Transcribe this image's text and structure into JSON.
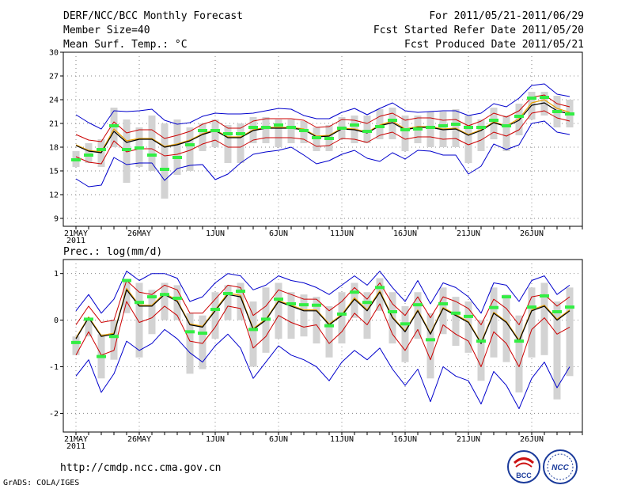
{
  "header": {
    "title": "DERF/NCC/BCC Monthly Forecast",
    "member_size": "Member Size=40",
    "variable_top": "Mean Surf. Temp.: °C",
    "forecast_range": "For 2011/05/21-2011/06/29",
    "start_date": "Fcst Started Refer Date 2011/05/20",
    "produced_date": "Fcst Produced Date 2011/05/21"
  },
  "footer": {
    "url": "http://cmdp.ncc.cma.gov.cn",
    "credit": "GrADS: COLA/IGES",
    "logo_bcc_text": "BCC",
    "logo_ncc_text": "NCC"
  },
  "colors": {
    "ensemble_mean": "#000000",
    "spread_inner": "#cc0000",
    "spread_outer": "#0000cc",
    "median": "#e8a000",
    "boxes": "#d3d3d3",
    "observed_marker": "#33ee44",
    "grid": "#888888"
  },
  "chart_data": [
    {
      "type": "line",
      "title": "Mean Surf. Temp.: °C",
      "x_start": "21MAY",
      "x_labels": [
        "21MAY",
        "26MAY",
        "1JUN",
        "6JUN",
        "11JUN",
        "16JUN",
        "21JUN",
        "26JUN"
      ],
      "x_label_day_index": [
        0,
        5,
        11,
        16,
        21,
        26,
        31,
        36
      ],
      "x_sublabel": "2011",
      "ylim": [
        8,
        30
      ],
      "yticks": [
        9,
        12,
        15,
        18,
        21,
        24,
        27,
        30
      ],
      "series": [
        {
          "name": "ensemble_mean",
          "values": [
            18.2,
            17.5,
            17.3,
            20.0,
            18.6,
            19.0,
            19.0,
            18.0,
            18.3,
            18.8,
            19.6,
            20.1,
            19.2,
            19.2,
            20.1,
            20.4,
            20.4,
            20.4,
            20.2,
            19.3,
            19.4,
            20.3,
            20.2,
            19.8,
            20.7,
            21.1,
            20.2,
            20.5,
            20.5,
            20.2,
            20.3,
            19.5,
            20.1,
            21.1,
            20.6,
            21.4,
            23.3,
            23.6,
            22.6,
            22.2
          ]
        },
        {
          "name": "median",
          "values": [
            18.3,
            17.6,
            17.4,
            20.3,
            18.8,
            19.1,
            19.1,
            18.1,
            18.4,
            18.9,
            19.7,
            20.2,
            19.3,
            19.3,
            20.2,
            20.5,
            20.5,
            20.5,
            20.3,
            19.4,
            19.5,
            20.4,
            20.3,
            19.9,
            20.8,
            21.3,
            20.3,
            20.6,
            20.6,
            20.3,
            20.4,
            19.6,
            20.2,
            21.2,
            20.7,
            21.6,
            23.6,
            24.0,
            22.9,
            22.4
          ]
        },
        {
          "name": "upper_1sd",
          "values": [
            19.6,
            18.9,
            18.7,
            21.2,
            19.8,
            20.2,
            20.2,
            19.1,
            19.5,
            20.0,
            20.9,
            21.4,
            20.4,
            20.4,
            21.3,
            21.6,
            21.6,
            21.6,
            21.4,
            20.5,
            20.6,
            21.5,
            21.4,
            21.0,
            21.9,
            22.3,
            21.4,
            21.7,
            21.7,
            21.4,
            21.5,
            20.7,
            21.3,
            22.3,
            21.8,
            22.6,
            24.3,
            24.6,
            23.5,
            23.1
          ]
        },
        {
          "name": "lower_1sd",
          "values": [
            16.8,
            16.1,
            15.9,
            18.8,
            17.4,
            17.8,
            17.8,
            16.9,
            17.1,
            17.6,
            18.4,
            18.9,
            18.0,
            18.0,
            18.9,
            19.2,
            19.2,
            19.2,
            19.0,
            18.1,
            18.2,
            19.1,
            19.0,
            18.6,
            19.5,
            19.9,
            19.0,
            19.3,
            19.3,
            19.0,
            19.1,
            18.3,
            18.9,
            19.9,
            19.4,
            20.2,
            22.3,
            22.6,
            21.7,
            21.3
          ]
        },
        {
          "name": "upper_extreme",
          "values": [
            22.1,
            21.1,
            20.3,
            22.6,
            22.5,
            22.6,
            22.8,
            21.4,
            20.9,
            21.1,
            21.9,
            22.3,
            22.2,
            22.2,
            22.3,
            22.6,
            22.9,
            22.8,
            22.0,
            21.6,
            21.6,
            22.4,
            22.9,
            22.1,
            22.9,
            23.6,
            22.6,
            22.4,
            22.5,
            22.6,
            22.6,
            22.0,
            22.3,
            23.5,
            23.1,
            24.2,
            25.8,
            26.0,
            24.7,
            24.4
          ]
        },
        {
          "name": "lower_extreme",
          "values": [
            14.0,
            13.0,
            13.2,
            16.7,
            15.8,
            16.0,
            16.0,
            13.8,
            15.3,
            15.7,
            15.8,
            13.9,
            14.6,
            16.0,
            17.1,
            17.4,
            17.6,
            18.0,
            17.0,
            15.9,
            16.3,
            17.1,
            17.6,
            16.6,
            16.2,
            17.3,
            16.5,
            17.6,
            17.5,
            17.0,
            17.0,
            14.6,
            15.6,
            18.4,
            17.7,
            18.3,
            21.0,
            21.3,
            19.9,
            19.6
          ]
        },
        {
          "name": "box_high",
          "values": [
            17.5,
            18.5,
            19.0,
            23.0,
            21.5,
            20.5,
            22.0,
            21.0,
            21.5,
            20.5,
            21.0,
            21.5,
            20.8,
            21.0,
            21.8,
            21.8,
            21.5,
            21.5,
            21.3,
            20.5,
            20.8,
            21.8,
            22.0,
            22.0,
            22.8,
            23.0,
            22.0,
            22.0,
            22.5,
            22.5,
            22.8,
            22.0,
            21.5,
            23.0,
            22.0,
            23.5,
            25.0,
            25.0,
            24.5,
            24.0
          ]
        },
        {
          "name": "box_low",
          "values": [
            15.5,
            16.0,
            15.5,
            18.0,
            13.5,
            15.5,
            15.0,
            11.5,
            14.5,
            15.0,
            17.5,
            18.0,
            16.0,
            16.0,
            18.5,
            18.5,
            18.0,
            18.5,
            18.5,
            17.5,
            17.5,
            19.0,
            18.5,
            18.5,
            19.0,
            19.0,
            17.5,
            18.5,
            18.0,
            18.0,
            18.0,
            16.0,
            17.5,
            19.0,
            17.5,
            19.5,
            21.5,
            22.0,
            20.5,
            20.5
          ]
        },
        {
          "name": "observed",
          "values": [
            16.4,
            17.0,
            17.7,
            20.7,
            17.7,
            17.9,
            17.0,
            15.2,
            16.7,
            18.3,
            20.1,
            20.1,
            19.7,
            19.7,
            20.5,
            20.5,
            20.8,
            20.5,
            20.1,
            19.2,
            19.1,
            20.4,
            20.8,
            20.0,
            20.6,
            21.4,
            20.2,
            20.3,
            20.5,
            20.7,
            20.9,
            20.5,
            20.5,
            21.4,
            20.7,
            21.9,
            24.2,
            24.3,
            22.5,
            22.2
          ]
        }
      ]
    },
    {
      "type": "line",
      "title": "Prec.: log(mm/d)",
      "x_start": "21MAY",
      "x_labels": [
        "21MAY",
        "26MAY",
        "1JUN",
        "6JUN",
        "11JUN",
        "16JUN",
        "21JUN",
        "26JUN"
      ],
      "x_label_day_index": [
        0,
        5,
        11,
        16,
        21,
        26,
        31,
        36
      ],
      "x_sublabel": "2011",
      "ylim": [
        -2.4,
        1.3
      ],
      "yticks": [
        -2,
        -1,
        0,
        1
      ],
      "series": [
        {
          "name": "ensemble_mean",
          "values": [
            -0.4,
            0.05,
            -0.35,
            -0.3,
            0.65,
            0.3,
            0.3,
            0.55,
            0.4,
            -0.1,
            -0.15,
            0.2,
            0.55,
            0.5,
            -0.2,
            0.0,
            0.4,
            0.3,
            0.2,
            0.2,
            -0.1,
            0.1,
            0.45,
            0.2,
            0.6,
            0.05,
            -0.25,
            0.2,
            -0.3,
            0.25,
            0.1,
            -0.05,
            -0.5,
            0.15,
            -0.05,
            -0.45,
            0.2,
            0.3,
            0.0,
            0.2
          ]
        },
        {
          "name": "median",
          "values": [
            -0.38,
            0.07,
            -0.33,
            -0.28,
            0.68,
            0.32,
            0.32,
            0.58,
            0.42,
            -0.08,
            -0.13,
            0.22,
            0.58,
            0.53,
            -0.18,
            0.02,
            0.42,
            0.32,
            0.22,
            0.22,
            -0.08,
            0.12,
            0.48,
            0.22,
            0.63,
            0.07,
            -0.23,
            0.22,
            -0.28,
            0.27,
            0.12,
            -0.03,
            -0.48,
            0.17,
            -0.03,
            -0.43,
            0.22,
            0.32,
            0.02,
            0.22
          ]
        },
        {
          "name": "upper_1sd",
          "values": [
            -0.1,
            0.3,
            -0.05,
            0.0,
            0.85,
            0.6,
            0.55,
            0.75,
            0.65,
            0.15,
            0.15,
            0.45,
            0.75,
            0.7,
            0.1,
            0.3,
            0.65,
            0.55,
            0.45,
            0.45,
            0.2,
            0.4,
            0.7,
            0.45,
            0.8,
            0.35,
            0.1,
            0.5,
            0.05,
            0.5,
            0.4,
            0.25,
            -0.1,
            0.45,
            0.25,
            -0.1,
            0.5,
            0.55,
            0.3,
            0.5
          ]
        },
        {
          "name": "lower_1sd",
          "values": [
            -0.75,
            -0.25,
            -0.75,
            -0.65,
            0.4,
            -0.05,
            0.05,
            0.3,
            0.1,
            -0.45,
            -0.5,
            -0.15,
            0.3,
            0.25,
            -0.6,
            -0.35,
            0.1,
            -0.05,
            -0.15,
            -0.1,
            -0.5,
            -0.25,
            0.15,
            -0.1,
            0.35,
            -0.3,
            -0.65,
            -0.2,
            -0.85,
            -0.1,
            -0.3,
            -0.45,
            -1.0,
            -0.25,
            -0.5,
            -1.0,
            -0.2,
            0.05,
            -0.3,
            -0.15
          ]
        },
        {
          "name": "upper_extreme",
          "values": [
            0.2,
            0.55,
            0.15,
            0.45,
            1.05,
            0.85,
            1.0,
            1.0,
            0.9,
            0.4,
            0.5,
            0.8,
            1.0,
            0.95,
            0.65,
            0.75,
            0.95,
            0.85,
            0.8,
            0.7,
            0.55,
            0.75,
            0.95,
            0.75,
            1.05,
            0.7,
            0.4,
            0.85,
            0.35,
            0.8,
            0.7,
            0.5,
            0.15,
            0.8,
            0.75,
            0.4,
            0.85,
            0.95,
            0.55,
            0.75
          ]
        },
        {
          "name": "lower_extreme",
          "values": [
            -1.2,
            -0.85,
            -1.55,
            -1.15,
            -0.45,
            -0.65,
            -0.5,
            -0.2,
            -0.4,
            -0.7,
            -0.9,
            -0.55,
            -0.3,
            -0.6,
            -1.25,
            -0.9,
            -0.55,
            -0.75,
            -0.85,
            -1.0,
            -1.3,
            -0.9,
            -0.65,
            -0.85,
            -0.6,
            -1.05,
            -1.4,
            -1.05,
            -1.75,
            -1.0,
            -1.2,
            -1.3,
            -1.8,
            -1.1,
            -1.4,
            -1.9,
            -1.25,
            -0.9,
            -1.45,
            -1.0
          ]
        },
        {
          "name": "box_high",
          "values": [
            -0.35,
            0.0,
            -0.3,
            0.0,
            0.85,
            0.8,
            0.65,
            0.8,
            0.75,
            0.15,
            0.1,
            0.6,
            0.75,
            0.8,
            0.4,
            0.7,
            0.8,
            0.6,
            0.55,
            0.5,
            0.3,
            0.6,
            0.8,
            0.6,
            0.9,
            0.6,
            0.3,
            0.6,
            0.15,
            0.7,
            0.5,
            0.4,
            0.0,
            0.7,
            0.55,
            0.1,
            0.7,
            0.8,
            0.4,
            0.7
          ]
        },
        {
          "name": "box_low",
          "values": [
            -0.75,
            -0.35,
            -1.25,
            -0.85,
            0.15,
            -0.8,
            -0.3,
            0.0,
            0.0,
            -1.15,
            -1.05,
            -0.4,
            0.0,
            0.0,
            -1.0,
            -0.7,
            -0.4,
            -0.4,
            -0.35,
            -0.5,
            -0.8,
            -0.5,
            0.05,
            -0.4,
            0.2,
            -0.5,
            -0.9,
            -0.4,
            -1.25,
            -0.3,
            -0.55,
            -0.7,
            -1.3,
            -0.8,
            -0.9,
            -1.55,
            -0.8,
            -0.75,
            -1.7,
            -1.2
          ]
        },
        {
          "name": "observed",
          "values": [
            -0.48,
            0.02,
            -0.78,
            -0.35,
            0.85,
            0.38,
            0.5,
            0.55,
            0.47,
            -0.25,
            -0.28,
            0.23,
            0.57,
            0.62,
            -0.2,
            0.02,
            0.45,
            0.35,
            0.33,
            0.32,
            -0.12,
            0.13,
            0.6,
            0.38,
            0.7,
            0.18,
            -0.08,
            0.33,
            -0.42,
            0.35,
            0.15,
            0.08,
            -0.45,
            0.27,
            0.5,
            -0.45,
            0.28,
            0.52,
            0.18,
            0.28
          ]
        }
      ]
    }
  ]
}
